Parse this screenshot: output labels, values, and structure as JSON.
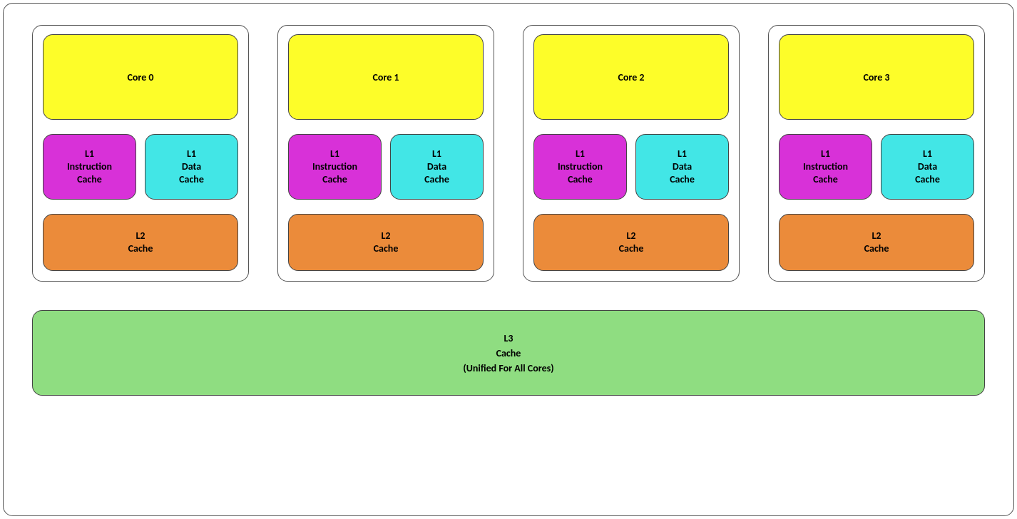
{
  "diagram": {
    "type": "block-diagram",
    "background_color": "#ffffff",
    "outer_border_color": "#555555",
    "border_radius": 14,
    "font_family": "Calibri",
    "label_fontsize": 14,
    "label_fontweight": 700,
    "colors": {
      "core": "#fdfd29",
      "l1_instruction": "#d831d8",
      "l1_data": "#42e6e6",
      "l2": "#eb8b3a",
      "l3": "#8fdd81"
    },
    "cores": [
      {
        "core_label": "Core 0",
        "l1i_label": "L1\nInstruction\nCache",
        "l1d_label": "L1\nData\nCache",
        "l2_label": "L2\nCache"
      },
      {
        "core_label": "Core 1",
        "l1i_label": "L1\nInstruction\nCache",
        "l1d_label": "L1\nData\nCache",
        "l2_label": "L2\nCache"
      },
      {
        "core_label": "Core 2",
        "l1i_label": "L1\nInstruction\nCache",
        "l1d_label": "L1\nData\nCache",
        "l2_label": "L2\nCache"
      },
      {
        "core_label": "Core 3",
        "l1i_label": "L1\nInstruction\nCache",
        "l1d_label": "L1\nData\nCache",
        "l2_label": "L2\nCache"
      }
    ],
    "l3_label": "L3\nCache\n(Unified For All Cores)"
  }
}
